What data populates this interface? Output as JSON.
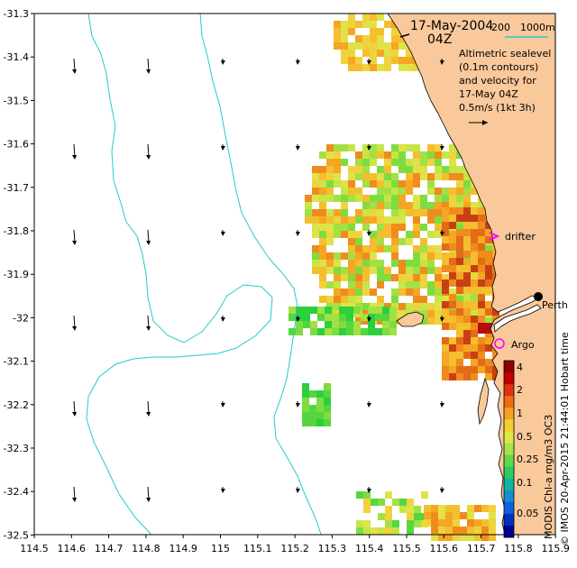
{
  "title": {
    "date": "17-May-2004",
    "time": "04Z"
  },
  "depth_legend": {
    "shallow": "200",
    "deep": "1000m",
    "color": "#22cccc"
  },
  "notes": {
    "line1": "Altimetric sealevel",
    "line2": "(0.1m contours)",
    "line3": "and velocity for",
    "line4": "17-May 04Z",
    "line5": "0.5m/s (1kt 3h)"
  },
  "markers": {
    "drifter": "drifter",
    "argo": "Argo",
    "city": "Perth",
    "drifter_color": "#ff00ff",
    "argo_color": "#ff00ff"
  },
  "colorbar": {
    "ticks": [
      "4",
      "2",
      "1",
      "0.5",
      "0.25",
      "0.1",
      "0.05"
    ],
    "caption": "MODIS Chl-a mg/m3 OC3",
    "timestamp": "© IMOS 20-Apr-2015 21:44:01 Hobart time"
  },
  "axes": {
    "x_ticks": [
      "114.5",
      "114.6",
      "114.7",
      "114.8",
      "114.9",
      "115",
      "115.1",
      "115.2",
      "115.3",
      "115.4",
      "115.5",
      "115.6",
      "115.7",
      "115.8",
      "115.9"
    ],
    "y_ticks": [
      "-31.3",
      "-31.4",
      "-31.5",
      "-31.6",
      "-31.7",
      "-31.8",
      "-31.9",
      "-32",
      "-32.1",
      "-32.2",
      "-32.3",
      "-32.4",
      "-32.5"
    ]
  },
  "colors": {
    "land": "#f9c89b",
    "isobath": "#22cccc",
    "arrow": "#000000"
  }
}
